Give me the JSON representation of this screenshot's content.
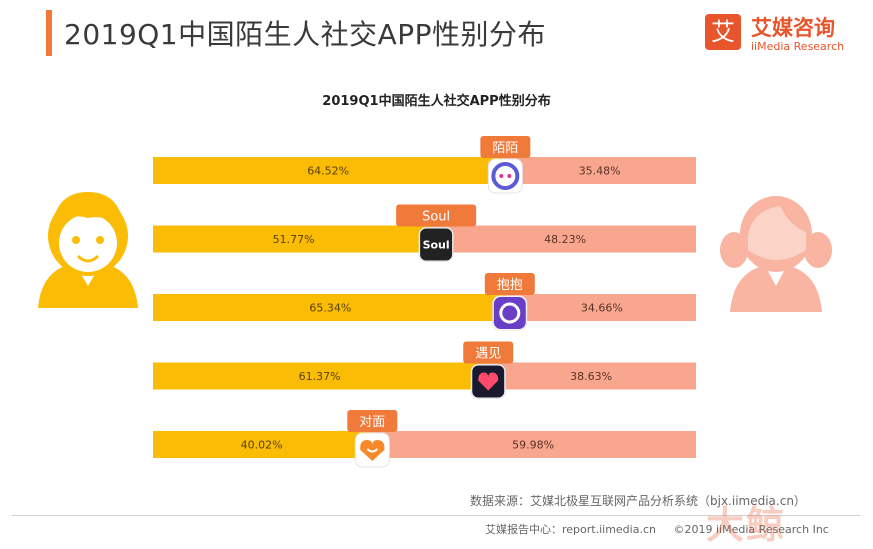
{
  "header": {
    "title": "2019Q1中国陌生人社交APP性别分布",
    "brand_cn": "艾媒咨询",
    "brand_en": "iiMedia Research",
    "brand_mark": "艾"
  },
  "chart_data": {
    "type": "bar",
    "title": "2019Q1中国陌生人社交APP性别分布",
    "categories": [
      "陌陌",
      "Soul",
      "抱抱",
      "遇见",
      "对面"
    ],
    "series": [
      {
        "values": [
          64.52,
          51.77,
          65.34,
          61.37,
          40.02
        ],
        "color": "#fbbc05"
      },
      {
        "values": [
          35.48,
          48.23,
          34.66,
          38.63,
          59.98
        ],
        "color": "#f9a68f"
      }
    ],
    "value_labels": [
      [
        "64.52%",
        "51.77%",
        "65.34%",
        "61.37%",
        "40.02%"
      ],
      [
        "35.48%",
        "48.23%",
        "34.66%",
        "38.63%",
        "59.98%"
      ]
    ],
    "stacked": "100%",
    "orientation": "horizontal",
    "legend": "none (male figure left, female figure right)",
    "grid": false,
    "category_tag_color": "#f07a3a",
    "male_color": "#fbbc05",
    "female_color": "#f9a68f"
  },
  "icons": [
    "male-avatar-icon",
    "female-avatar-icon",
    "momo-app-icon",
    "soul-app-icon",
    "baobao-app-icon",
    "yujian-app-icon",
    "duimian-app-icon"
  ],
  "source_text": "数据来源：艾媒北极星互联网产品分析系统（bjx.iimedia.cn）",
  "footer": {
    "report_center": "艾媒报告中心：report.iimedia.cn",
    "copyright": "©2019  iiMedia Research Inc"
  },
  "watermark": "大鲸"
}
